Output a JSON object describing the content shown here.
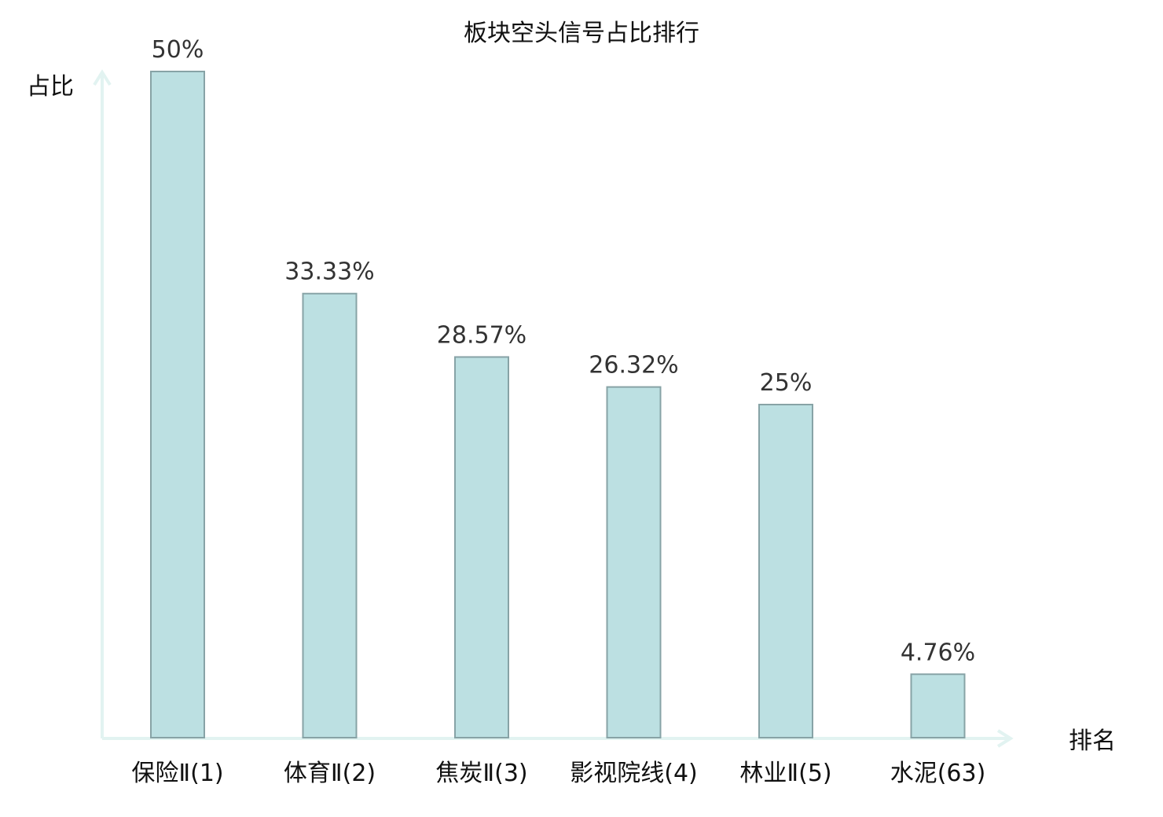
{
  "chart_data": {
    "type": "bar",
    "title": "板块空头信号占比排行",
    "ylabel": "占比",
    "xlabel": "排名",
    "categories": [
      "保险Ⅱ(1)",
      "体育Ⅱ(2)",
      "焦炭Ⅱ(3)",
      "影视院线(4)",
      "林业Ⅱ(5)",
      "水泥(63)"
    ],
    "values": [
      50,
      33.33,
      28.57,
      26.32,
      25,
      4.76
    ],
    "value_labels": [
      "50%",
      "33.33%",
      "28.57%",
      "26.32%",
      "25%",
      "4.76%"
    ],
    "ylim": [
      0,
      50
    ],
    "grid": false,
    "colors": {
      "bar_fill": "#bce0e2",
      "bar_stroke": "#87a3a6",
      "axis": "#e2f3f1",
      "highlight_category": "#e02020",
      "text": "#111111"
    },
    "highlight_index": 5
  }
}
